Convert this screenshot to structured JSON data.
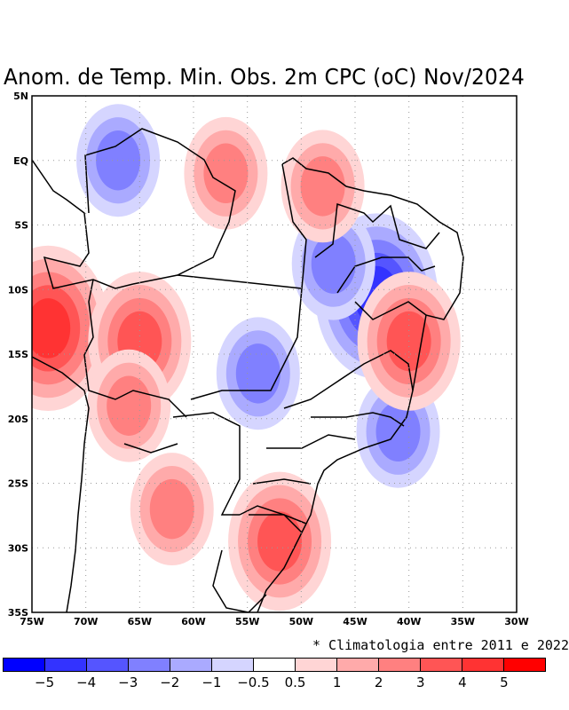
{
  "title": "Anom. de Temp. Min. Obs. 2m CPC (oC) Nov/2024",
  "footnote": "* Climatologia entre 2011 e 2022",
  "map": {
    "lon_range": [
      -75,
      -30
    ],
    "lat_range": [
      -35,
      5
    ],
    "lat_ticks": [
      "5N",
      "EQ",
      "5S",
      "10S",
      "15S",
      "20S",
      "25S",
      "30S",
      "35S"
    ],
    "lon_ticks": [
      "75W",
      "70W",
      "65W",
      "60W",
      "55W",
      "50W",
      "45W",
      "40W",
      "35W",
      "30W"
    ],
    "grid": "dotted",
    "variable": "minimum 2m temperature anomaly",
    "units": "oC",
    "anomalies": [
      {
        "name": "peru-warm",
        "lon": -73.5,
        "lat": -13,
        "value": 4.5
      },
      {
        "name": "bolivia-warm",
        "lon": -65,
        "lat": -14,
        "value": 3
      },
      {
        "name": "pantanal-warm",
        "lon": -66,
        "lat": -19,
        "value": 2.5
      },
      {
        "name": "argentina-warm",
        "lon": -62,
        "lat": -27,
        "value": 2
      },
      {
        "name": "rs-warm",
        "lon": -52,
        "lat": -29.5,
        "value": 3.5
      },
      {
        "name": "roraima-cool",
        "lon": -67,
        "lat": 0,
        "value": -2
      },
      {
        "name": "tocantins-cool",
        "lon": -43,
        "lat": -10.5,
        "value": -4
      },
      {
        "name": "maranhao-cool",
        "lon": -47,
        "lat": -8,
        "value": -2
      },
      {
        "name": "mt-cool",
        "lon": -54,
        "lat": -16.5,
        "value": -2.5
      },
      {
        "name": "mg-cool",
        "lon": -41,
        "lat": -21,
        "value": -2
      },
      {
        "name": "para-coast-warm",
        "lon": -48,
        "lat": -2,
        "value": 2
      },
      {
        "name": "bahia-warm",
        "lon": -40,
        "lat": -14,
        "value": 3
      },
      {
        "name": "amapa-warm",
        "lon": -57,
        "lat": -1,
        "value": 2
      }
    ]
  },
  "colorbar": {
    "colors": [
      "#0000ff",
      "#3333ff",
      "#5555ff",
      "#8080ff",
      "#aaaaff",
      "#d5d5ff",
      "#ffffff",
      "#ffd5d5",
      "#ffaaaa",
      "#ff8080",
      "#ff5555",
      "#ff3333",
      "#ff0000"
    ],
    "labels": [
      "-5",
      "-4",
      "-3",
      "-2",
      "-1",
      "-0.5",
      "0.5",
      "1",
      "2",
      "3",
      "4",
      "5"
    ]
  }
}
